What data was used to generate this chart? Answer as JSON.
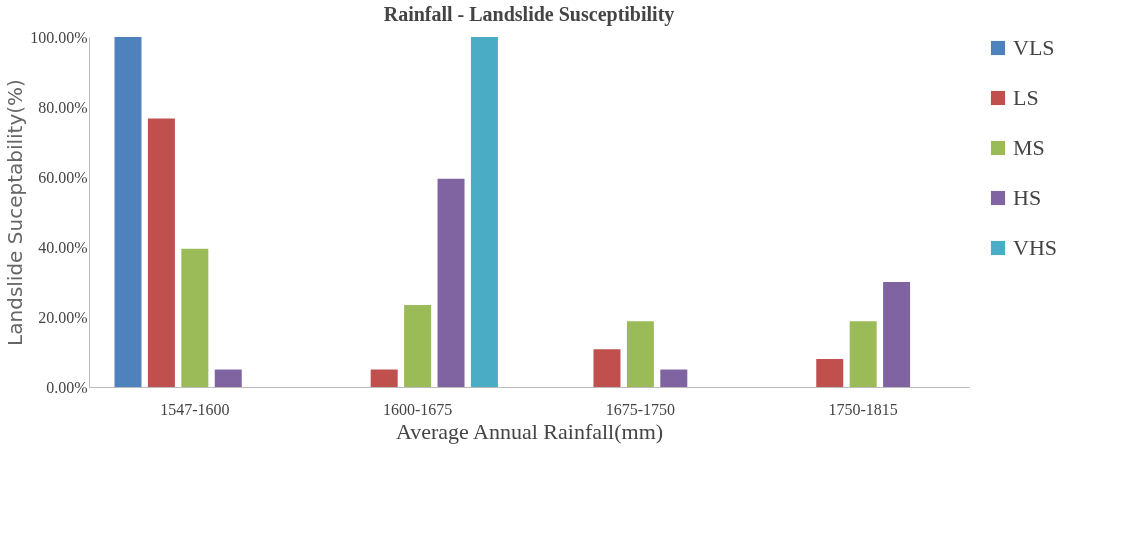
{
  "chart_data": {
    "type": "bar",
    "title": "Rainfall - Landslide Susceptibility",
    "xlabel": "Average Annual Rainfall(mm)",
    "ylabel": "Landslide Suceptability(%)",
    "categories": [
      "1547-1600",
      "1600-1675",
      "1675-1750",
      "1750-1815"
    ],
    "series": [
      {
        "name": "VLS",
        "color": "#4f81bd",
        "values": [
          100,
          0,
          0,
          0
        ]
      },
      {
        "name": "LS",
        "color": "#c0504d",
        "values": [
          76.7,
          5,
          10.8,
          8
        ]
      },
      {
        "name": "MS",
        "color": "#9bbb59",
        "values": [
          39.5,
          23.4,
          18.8,
          18.8
        ]
      },
      {
        "name": "HS",
        "color": "#8064a2",
        "values": [
          5,
          59.5,
          5,
          30
        ]
      },
      {
        "name": "VHS",
        "color": "#4bacc6",
        "values": [
          0,
          100,
          0,
          0
        ]
      }
    ],
    "ylim": [
      0,
      100
    ],
    "yticks": [
      {
        "value": 0,
        "label": "0.00%"
      },
      {
        "value": 20,
        "label": "20.00%"
      },
      {
        "value": 40,
        "label": "40.00%"
      },
      {
        "value": 60,
        "label": "60.00%"
      },
      {
        "value": 80,
        "label": "80.00%"
      },
      {
        "value": 100,
        "label": "100.00%"
      }
    ],
    "grid": false,
    "legend": "right"
  }
}
